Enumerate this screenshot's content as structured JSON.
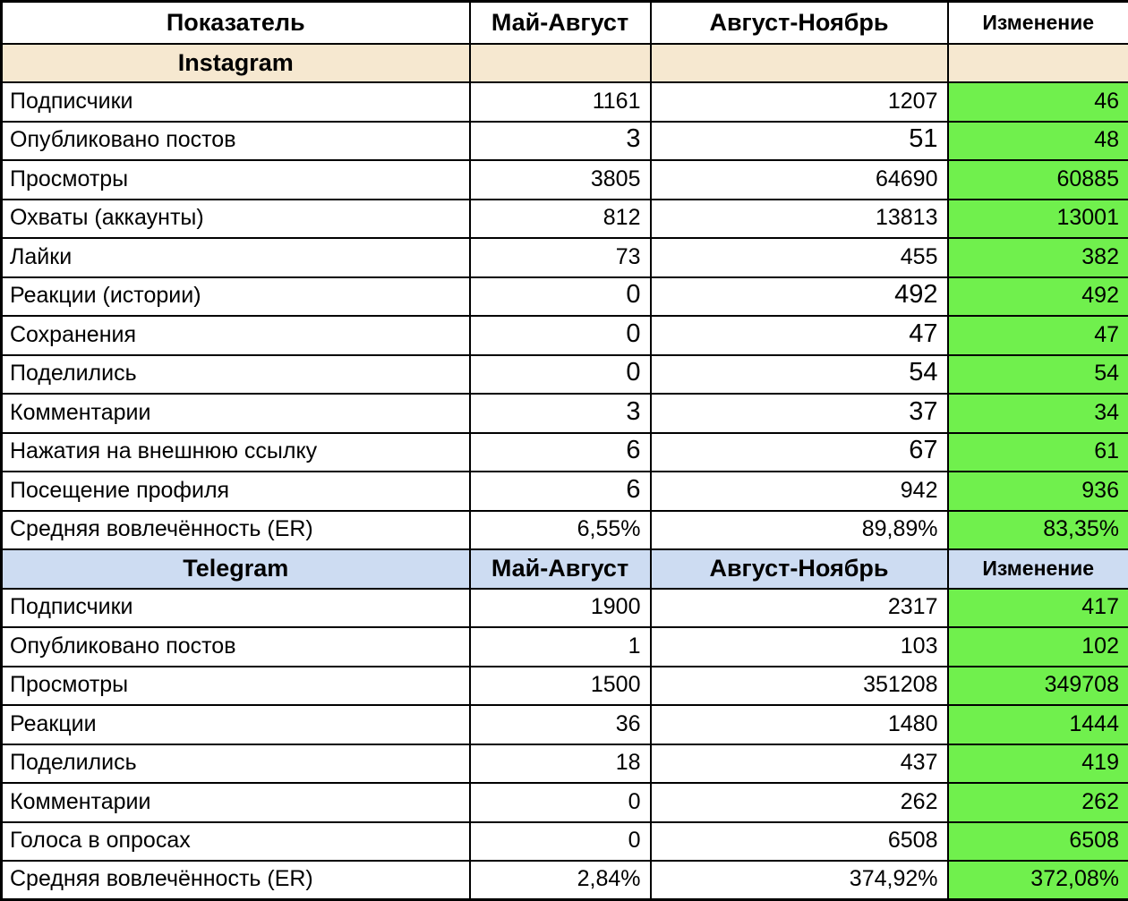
{
  "columns": {
    "indicator": "Показатель",
    "period1": "Май-Август",
    "period2": "Август-Ноябрь",
    "change": "Изменение"
  },
  "colors": {
    "instagram_header_bg": "#F6E8D0",
    "telegram_header_bg": "#CDDCF2",
    "change_cell_bg": "#70F04D",
    "border": "#000000"
  },
  "sections": [
    {
      "name": "Instagram",
      "header_bg": "#F6E8D0",
      "repeat_column_headers": false,
      "rows": [
        {
          "label": "Подписчики",
          "period1": "1161",
          "period2": "1207",
          "change": "46",
          "big": []
        },
        {
          "label": "Опубликовано постов",
          "period1": "3",
          "period2": "51",
          "change": "48",
          "big": [
            "period1",
            "period2"
          ]
        },
        {
          "label": "Просмотры",
          "period1": "3805",
          "period2": "64690",
          "change": "60885",
          "big": []
        },
        {
          "label": "Охваты (аккаунты)",
          "period1": "812",
          "period2": "13813",
          "change": "13001",
          "big": []
        },
        {
          "label": "Лайки",
          "period1": "73",
          "period2": "455",
          "change": "382",
          "big": []
        },
        {
          "label": "Реакции (истории)",
          "period1": "0",
          "period2": "492",
          "change": "492",
          "big": [
            "period1",
            "period2"
          ]
        },
        {
          "label": "Сохранения",
          "period1": "0",
          "period2": "47",
          "change": "47",
          "big": [
            "period1",
            "period2"
          ]
        },
        {
          "label": "Поделились",
          "period1": "0",
          "period2": "54",
          "change": "54",
          "big": [
            "period1",
            "period2"
          ]
        },
        {
          "label": "Комментарии",
          "period1": "3",
          "period2": "37",
          "change": "34",
          "big": [
            "period1",
            "period2"
          ]
        },
        {
          "label": "Нажатия на внешнюю ссылку",
          "period1": "6",
          "period2": "67",
          "change": "61",
          "big": [
            "period1",
            "period2"
          ]
        },
        {
          "label": "Посещение профиля",
          "period1": "6",
          "period2": "942",
          "change": "936",
          "big": [
            "period1"
          ]
        },
        {
          "label": "Средняя вовлечённость (ER)",
          "period1": "6,55%",
          "period2": "89,89%",
          "change": "83,35%",
          "big": []
        }
      ]
    },
    {
      "name": "Telegram",
      "header_bg": "#CDDCF2",
      "repeat_column_headers": true,
      "rows": [
        {
          "label": "Подписчики",
          "period1": "1900",
          "period2": "2317",
          "change": "417",
          "big": []
        },
        {
          "label": "Опубликовано постов",
          "period1": "1",
          "period2": "103",
          "change": "102",
          "big": []
        },
        {
          "label": "Просмотры",
          "period1": "1500",
          "period2": "351208",
          "change": "349708",
          "big": []
        },
        {
          "label": "Реакции",
          "period1": "36",
          "period2": "1480",
          "change": "1444",
          "big": []
        },
        {
          "label": "Поделились",
          "period1": "18",
          "period2": "437",
          "change": "419",
          "big": []
        },
        {
          "label": "Комментарии",
          "period1": "0",
          "period2": "262",
          "change": "262",
          "big": []
        },
        {
          "label": "Голоса в опросах",
          "period1": "0",
          "period2": "6508",
          "change": "6508",
          "big": []
        },
        {
          "label": "Средняя вовлечённость (ER)",
          "period1": "2,84%",
          "period2": "374,92%",
          "change": "372,08%",
          "big": []
        }
      ]
    }
  ]
}
